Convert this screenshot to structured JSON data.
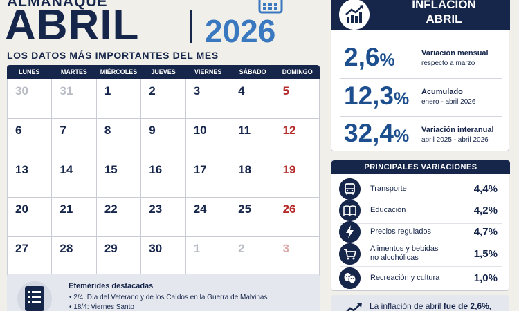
{
  "header": {
    "kicker": "ALMANAQUE",
    "month": "ABRIL",
    "year": "2026",
    "subtitle": "LOS DATOS MÁS IMPORTANTES DEL MES"
  },
  "calendar": {
    "weekdays": [
      "LUNES",
      "MARTES",
      "MIÉRCOLES",
      "JUEVES",
      "VIERNES",
      "SÁBADO",
      "DOMINGO"
    ],
    "weeks": [
      [
        "30",
        "31",
        "1",
        "2",
        "3",
        "4",
        "5"
      ],
      [
        "6",
        "7",
        "8",
        "9",
        "10",
        "11",
        "12"
      ],
      [
        "13",
        "14",
        "15",
        "16",
        "17",
        "18",
        "19"
      ],
      [
        "20",
        "21",
        "22",
        "23",
        "24",
        "25",
        "26"
      ],
      [
        "27",
        "28",
        "29",
        "30",
        "1",
        "2",
        "3"
      ]
    ]
  },
  "efemerides": {
    "title": "Efemérides destacadas",
    "items": [
      "• 2/4: Día del Veterano y de los Caídos en la Guerra de Malvinas",
      "• 18/4: Viernes Santo"
    ]
  },
  "inflation": {
    "title_line1": "INFLACIÓN",
    "title_line2": "ABRIL",
    "stats": [
      {
        "number": "2,6",
        "unit": "%",
        "label": "Variación mensual",
        "sub": "respecto a marzo"
      },
      {
        "number": "12,3",
        "unit": "%",
        "label": "Acumulado",
        "sub": "enero - abril 2026"
      },
      {
        "number": "32,4",
        "unit": "%",
        "label": "Variación interanual",
        "sub": "abril 2025 - abril 2026"
      }
    ]
  },
  "variations": {
    "title": "PRINCIPALES VARIACIONES",
    "items": [
      {
        "label": "Transporte",
        "label2": "",
        "value": "4,4%",
        "icon": "bus-icon"
      },
      {
        "label": "Educación",
        "label2": "",
        "value": "4,2%",
        "icon": "book-icon"
      },
      {
        "label": "Precios regulados",
        "label2": "",
        "value": "4,7%",
        "icon": "lightning-icon"
      },
      {
        "label": "Alimentos y bebidas",
        "label2": "no alcohólicas",
        "value": "1,5%",
        "icon": "cart-icon"
      },
      {
        "label": "Recreación y cultura",
        "label2": "",
        "value": "1,0%",
        "icon": "theater-masks-icon"
      }
    ]
  },
  "note": {
    "prefix": "La inflación de abril ",
    "bold": "fue de 2,6%,"
  },
  "colors": {
    "navy": "#16254a",
    "accent_blue": "#3a78c0",
    "stat_blue": "#1d4f8f",
    "sunday_red": "#b52a2a",
    "muted_day": "#b8bcc4"
  }
}
